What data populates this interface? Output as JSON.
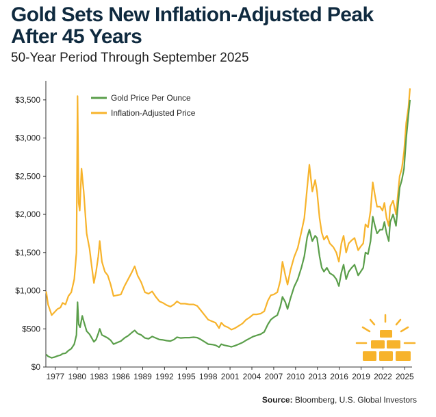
{
  "chart_data": {
    "type": "line",
    "title": "Gold Sets New Inflation-Adjusted Peak After 45 Years",
    "subtitle": "50-Year Period Through September 2025",
    "xlabel": "",
    "ylabel": "",
    "x_ticks": [
      "1977",
      "1980",
      "1983",
      "1986",
      "1989",
      "1992",
      "1995",
      "1998",
      "2001",
      "2004",
      "2007",
      "2010",
      "2013",
      "2016",
      "2019",
      "2022",
      "2025"
    ],
    "y_ticks": [
      "$0",
      "$500",
      "$1,000",
      "$1,500",
      "$2,000",
      "$2,500",
      "$3,000",
      "$3,500"
    ],
    "ylim": [
      0,
      3750
    ],
    "xlim": [
      1975.7,
      2026.0
    ],
    "legend": {
      "placement": "top-left"
    },
    "grid": false,
    "series": [
      {
        "name": "Gold Price Per Ounce",
        "color": "#5a9e4a",
        "points": [
          [
            1975.75,
            165
          ],
          [
            1976.0,
            140
          ],
          [
            1976.5,
            120
          ],
          [
            1976.9,
            130
          ],
          [
            1977.3,
            145
          ],
          [
            1977.7,
            155
          ],
          [
            1978.0,
            175
          ],
          [
            1978.4,
            180
          ],
          [
            1978.8,
            215
          ],
          [
            1979.2,
            240
          ],
          [
            1979.6,
            300
          ],
          [
            1979.9,
            420
          ],
          [
            1980.05,
            850
          ],
          [
            1980.2,
            560
          ],
          [
            1980.4,
            520
          ],
          [
            1980.7,
            670
          ],
          [
            1980.9,
            600
          ],
          [
            1981.3,
            470
          ],
          [
            1981.7,
            430
          ],
          [
            1982.0,
            380
          ],
          [
            1982.3,
            330
          ],
          [
            1982.6,
            360
          ],
          [
            1982.9,
            440
          ],
          [
            1983.1,
            500
          ],
          [
            1983.4,
            420
          ],
          [
            1983.8,
            400
          ],
          [
            1984.2,
            380
          ],
          [
            1984.6,
            350
          ],
          [
            1985.0,
            300
          ],
          [
            1985.5,
            320
          ],
          [
            1986.0,
            340
          ],
          [
            1986.5,
            380
          ],
          [
            1987.0,
            410
          ],
          [
            1987.5,
            450
          ],
          [
            1987.9,
            480
          ],
          [
            1988.3,
            440
          ],
          [
            1988.8,
            420
          ],
          [
            1989.3,
            380
          ],
          [
            1989.8,
            370
          ],
          [
            1990.3,
            400
          ],
          [
            1990.8,
            380
          ],
          [
            1991.3,
            360
          ],
          [
            1991.8,
            355
          ],
          [
            1992.3,
            345
          ],
          [
            1992.8,
            340
          ],
          [
            1993.3,
            360
          ],
          [
            1993.7,
            390
          ],
          [
            1994.2,
            380
          ],
          [
            1994.8,
            385
          ],
          [
            1995.4,
            385
          ],
          [
            1996.0,
            390
          ],
          [
            1996.5,
            385
          ],
          [
            1997.0,
            360
          ],
          [
            1997.5,
            330
          ],
          [
            1998.0,
            300
          ],
          [
            1998.5,
            295
          ],
          [
            1999.0,
            285
          ],
          [
            1999.5,
            260
          ],
          [
            1999.8,
            300
          ],
          [
            2000.2,
            285
          ],
          [
            2000.7,
            275
          ],
          [
            2001.2,
            265
          ],
          [
            2001.7,
            280
          ],
          [
            2002.2,
            300
          ],
          [
            2002.7,
            320
          ],
          [
            2003.2,
            350
          ],
          [
            2003.7,
            375
          ],
          [
            2004.2,
            400
          ],
          [
            2004.7,
            415
          ],
          [
            2005.2,
            430
          ],
          [
            2005.7,
            460
          ],
          [
            2006.2,
            560
          ],
          [
            2006.6,
            620
          ],
          [
            2007.0,
            650
          ],
          [
            2007.5,
            680
          ],
          [
            2007.9,
            790
          ],
          [
            2008.2,
            920
          ],
          [
            2008.6,
            850
          ],
          [
            2008.9,
            760
          ],
          [
            2009.3,
            900
          ],
          [
            2009.8,
            1050
          ],
          [
            2010.3,
            1150
          ],
          [
            2010.8,
            1300
          ],
          [
            2011.2,
            1450
          ],
          [
            2011.6,
            1700
          ],
          [
            2011.9,
            1800
          ],
          [
            2012.3,
            1650
          ],
          [
            2012.7,
            1720
          ],
          [
            2012.95,
            1690
          ],
          [
            2013.3,
            1450
          ],
          [
            2013.6,
            1300
          ],
          [
            2013.9,
            1250
          ],
          [
            2014.3,
            1300
          ],
          [
            2014.7,
            1230
          ],
          [
            2015.2,
            1200
          ],
          [
            2015.6,
            1150
          ],
          [
            2015.95,
            1060
          ],
          [
            2016.3,
            1240
          ],
          [
            2016.6,
            1340
          ],
          [
            2016.95,
            1150
          ],
          [
            2017.3,
            1250
          ],
          [
            2017.7,
            1300
          ],
          [
            2018.1,
            1340
          ],
          [
            2018.6,
            1200
          ],
          [
            2018.95,
            1250
          ],
          [
            2019.3,
            1300
          ],
          [
            2019.6,
            1500
          ],
          [
            2019.95,
            1480
          ],
          [
            2020.3,
            1650
          ],
          [
            2020.6,
            1970
          ],
          [
            2020.9,
            1850
          ],
          [
            2021.2,
            1750
          ],
          [
            2021.6,
            1800
          ],
          [
            2021.95,
            1800
          ],
          [
            2022.2,
            1900
          ],
          [
            2022.5,
            1750
          ],
          [
            2022.8,
            1650
          ],
          [
            2023.0,
            1900
          ],
          [
            2023.4,
            2000
          ],
          [
            2023.8,
            1850
          ],
          [
            2024.0,
            2050
          ],
          [
            2024.3,
            2350
          ],
          [
            2024.6,
            2450
          ],
          [
            2024.9,
            2600
          ],
          [
            2025.2,
            3000
          ],
          [
            2025.5,
            3300
          ],
          [
            2025.72,
            3500
          ]
        ]
      },
      {
        "name": "Inflation-Adjusted Price",
        "color": "#f7b32b",
        "points": [
          [
            1975.75,
            990
          ],
          [
            1976.0,
            820
          ],
          [
            1976.5,
            680
          ],
          [
            1976.9,
            720
          ],
          [
            1977.3,
            760
          ],
          [
            1977.7,
            780
          ],
          [
            1978.0,
            840
          ],
          [
            1978.4,
            820
          ],
          [
            1978.8,
            930
          ],
          [
            1979.2,
            980
          ],
          [
            1979.6,
            1150
          ],
          [
            1979.9,
            1500
          ],
          [
            1980.05,
            3550
          ],
          [
            1980.2,
            2150
          ],
          [
            1980.35,
            2050
          ],
          [
            1980.6,
            2600
          ],
          [
            1980.9,
            2300
          ],
          [
            1981.3,
            1750
          ],
          [
            1981.7,
            1550
          ],
          [
            1982.0,
            1320
          ],
          [
            1982.3,
            1100
          ],
          [
            1982.6,
            1250
          ],
          [
            1982.9,
            1450
          ],
          [
            1983.1,
            1650
          ],
          [
            1983.4,
            1380
          ],
          [
            1983.8,
            1250
          ],
          [
            1984.2,
            1200
          ],
          [
            1984.6,
            1080
          ],
          [
            1985.0,
            930
          ],
          [
            1985.5,
            940
          ],
          [
            1986.0,
            950
          ],
          [
            1986.5,
            1060
          ],
          [
            1987.0,
            1150
          ],
          [
            1987.5,
            1240
          ],
          [
            1987.9,
            1320
          ],
          [
            1988.3,
            1200
          ],
          [
            1988.8,
            1110
          ],
          [
            1989.3,
            980
          ],
          [
            1989.8,
            960
          ],
          [
            1990.3,
            990
          ],
          [
            1990.8,
            920
          ],
          [
            1991.3,
            860
          ],
          [
            1991.8,
            840
          ],
          [
            1992.3,
            810
          ],
          [
            1992.8,
            790
          ],
          [
            1993.3,
            820
          ],
          [
            1993.7,
            860
          ],
          [
            1994.2,
            830
          ],
          [
            1994.8,
            830
          ],
          [
            1995.4,
            820
          ],
          [
            1996.0,
            820
          ],
          [
            1996.5,
            800
          ],
          [
            1997.0,
            740
          ],
          [
            1997.5,
            680
          ],
          [
            1998.0,
            620
          ],
          [
            1998.5,
            600
          ],
          [
            1999.0,
            580
          ],
          [
            1999.5,
            510
          ],
          [
            1999.8,
            580
          ],
          [
            2000.2,
            540
          ],
          [
            2000.7,
            520
          ],
          [
            2001.2,
            490
          ],
          [
            2001.7,
            510
          ],
          [
            2002.2,
            540
          ],
          [
            2002.7,
            570
          ],
          [
            2003.2,
            620
          ],
          [
            2003.7,
            650
          ],
          [
            2004.2,
            690
          ],
          [
            2004.7,
            690
          ],
          [
            2005.2,
            700
          ],
          [
            2005.7,
            730
          ],
          [
            2006.2,
            870
          ],
          [
            2006.6,
            940
          ],
          [
            2007.0,
            950
          ],
          [
            2007.5,
            980
          ],
          [
            2007.9,
            1130
          ],
          [
            2008.2,
            1380
          ],
          [
            2008.6,
            1200
          ],
          [
            2008.9,
            1080
          ],
          [
            2009.3,
            1270
          ],
          [
            2009.8,
            1440
          ],
          [
            2010.3,
            1560
          ],
          [
            2010.8,
            1770
          ],
          [
            2011.2,
            1950
          ],
          [
            2011.6,
            2350
          ],
          [
            2011.9,
            2650
          ],
          [
            2012.3,
            2300
          ],
          [
            2012.7,
            2450
          ],
          [
            2012.95,
            2300
          ],
          [
            2013.3,
            1950
          ],
          [
            2013.6,
            1760
          ],
          [
            2013.9,
            1670
          ],
          [
            2014.3,
            1720
          ],
          [
            2014.7,
            1620
          ],
          [
            2015.2,
            1570
          ],
          [
            2015.6,
            1500
          ],
          [
            2015.95,
            1380
          ],
          [
            2016.3,
            1620
          ],
          [
            2016.6,
            1720
          ],
          [
            2016.95,
            1500
          ],
          [
            2017.3,
            1620
          ],
          [
            2017.7,
            1660
          ],
          [
            2018.1,
            1690
          ],
          [
            2018.6,
            1530
          ],
          [
            2018.95,
            1580
          ],
          [
            2019.3,
            1620
          ],
          [
            2019.6,
            1870
          ],
          [
            2019.95,
            1830
          ],
          [
            2020.3,
            2050
          ],
          [
            2020.6,
            2420
          ],
          [
            2020.9,
            2250
          ],
          [
            2021.2,
            2100
          ],
          [
            2021.6,
            2100
          ],
          [
            2021.95,
            2050
          ],
          [
            2022.2,
            2150
          ],
          [
            2022.5,
            1950
          ],
          [
            2022.8,
            1850
          ],
          [
            2023.0,
            2100
          ],
          [
            2023.4,
            2180
          ],
          [
            2023.8,
            2000
          ],
          [
            2024.0,
            2200
          ],
          [
            2024.3,
            2500
          ],
          [
            2024.6,
            2600
          ],
          [
            2024.9,
            2820
          ],
          [
            2025.2,
            3200
          ],
          [
            2025.5,
            3400
          ],
          [
            2025.72,
            3650
          ]
        ]
      }
    ]
  },
  "source": {
    "label": "Source:",
    "text": "Bloomberg, U.S. Global Investors"
  },
  "icon": "gold-bars-icon"
}
